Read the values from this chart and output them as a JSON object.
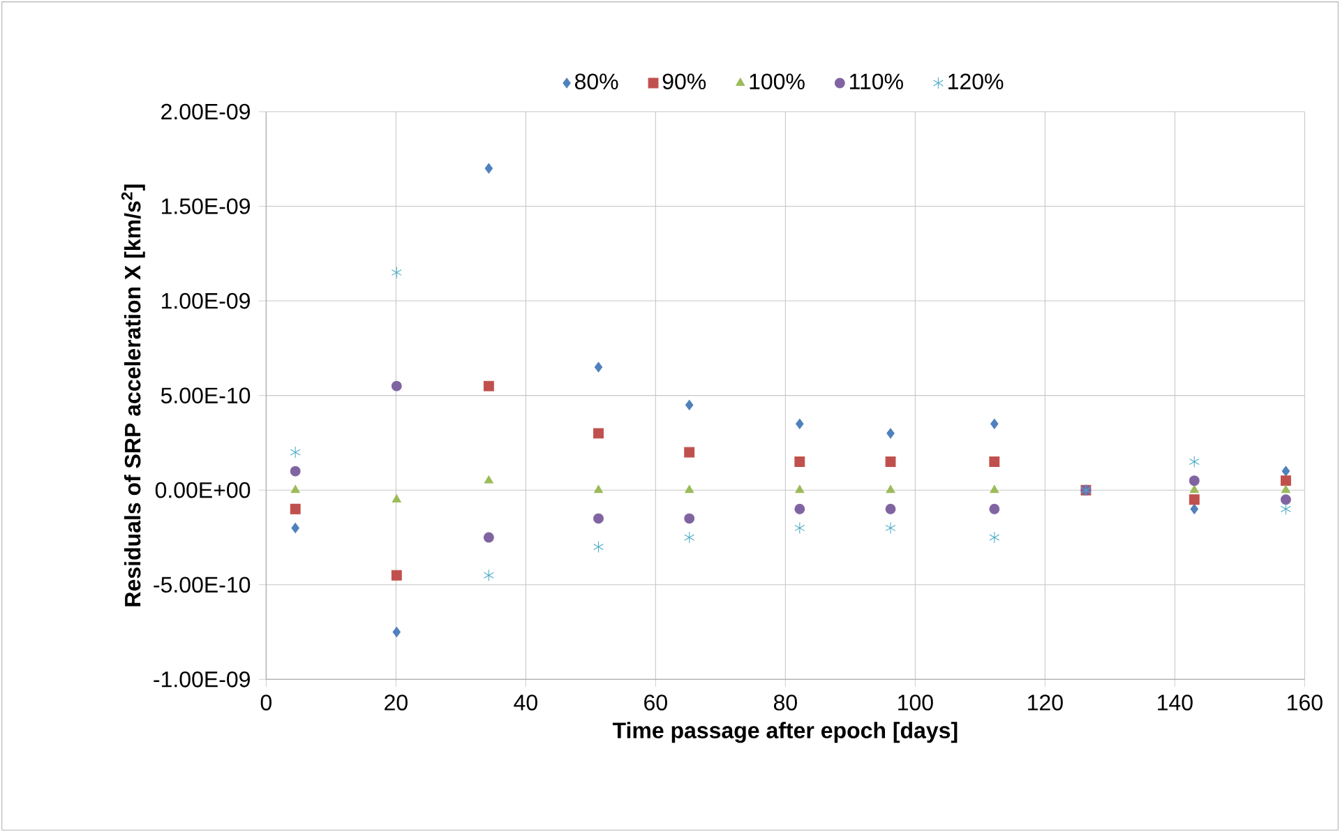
{
  "chart_data": {
    "type": "scatter",
    "xlabel": "Time passage after epoch [days]",
    "ylabel": "Residuals of SRP acceleration X [km/s$^{2}$]",
    "x": [
      4.5,
      20.1,
      34.3,
      51.2,
      65.2,
      82.2,
      96.2,
      112.2,
      126.3,
      143.0,
      157.1
    ],
    "series": [
      {
        "name": "80%",
        "color": "#4f81bd",
        "marker": "diamond",
        "values": [
          -2e-10,
          -7.5e-10,
          1.7e-09,
          6.5e-10,
          4.5e-10,
          3.5e-10,
          3e-10,
          3.5e-10,
          null,
          -1e-10,
          1e-10
        ]
      },
      {
        "name": "90%",
        "color": "#c0504d",
        "marker": "square",
        "values": [
          -1e-10,
          -4.5e-10,
          5.5e-10,
          3e-10,
          2e-10,
          1.5e-10,
          1.5e-10,
          1.5e-10,
          0,
          -5e-11,
          5e-11
        ]
      },
      {
        "name": "100%",
        "color": "#9bbb59",
        "marker": "triangle",
        "values": [
          0,
          -5e-11,
          5e-11,
          0,
          0,
          0,
          0,
          0,
          0,
          0,
          0
        ]
      },
      {
        "name": "110%",
        "color": "#8064a2",
        "marker": "circle",
        "values": [
          1e-10,
          5.5e-10,
          -2.5e-10,
          -1.5e-10,
          -1.5e-10,
          -1e-10,
          -1e-10,
          -1e-10,
          0,
          5e-11,
          -5e-11
        ]
      },
      {
        "name": "120%",
        "color": "#4bacc6",
        "marker": "cross",
        "values": [
          2e-10,
          1.15e-09,
          -4.5e-10,
          -3e-10,
          -2.5e-10,
          -2e-10,
          -2e-10,
          -2.5e-10,
          0,
          1.5e-10,
          -1e-10
        ]
      }
    ],
    "xlim": [
      0,
      160
    ],
    "xticks": [
      0,
      20,
      40,
      60,
      80,
      100,
      120,
      140,
      160
    ],
    "ylim": [
      -1e-09,
      2e-09
    ],
    "yticks": [
      {
        "value": -1e-09,
        "label": "-1.00E-09"
      },
      {
        "value": -5e-10,
        "label": "-5.00E-10"
      },
      {
        "value": 0,
        "label": "0.00E+00"
      },
      {
        "value": 5e-10,
        "label": "5.00E-10"
      },
      {
        "value": 1e-09,
        "label": "1.00E-09"
      },
      {
        "value": 1.5e-09,
        "label": "1.50E-09"
      },
      {
        "value": 2e-09,
        "label": "2.00E-09"
      }
    ],
    "grid": true,
    "legend": "top"
  }
}
